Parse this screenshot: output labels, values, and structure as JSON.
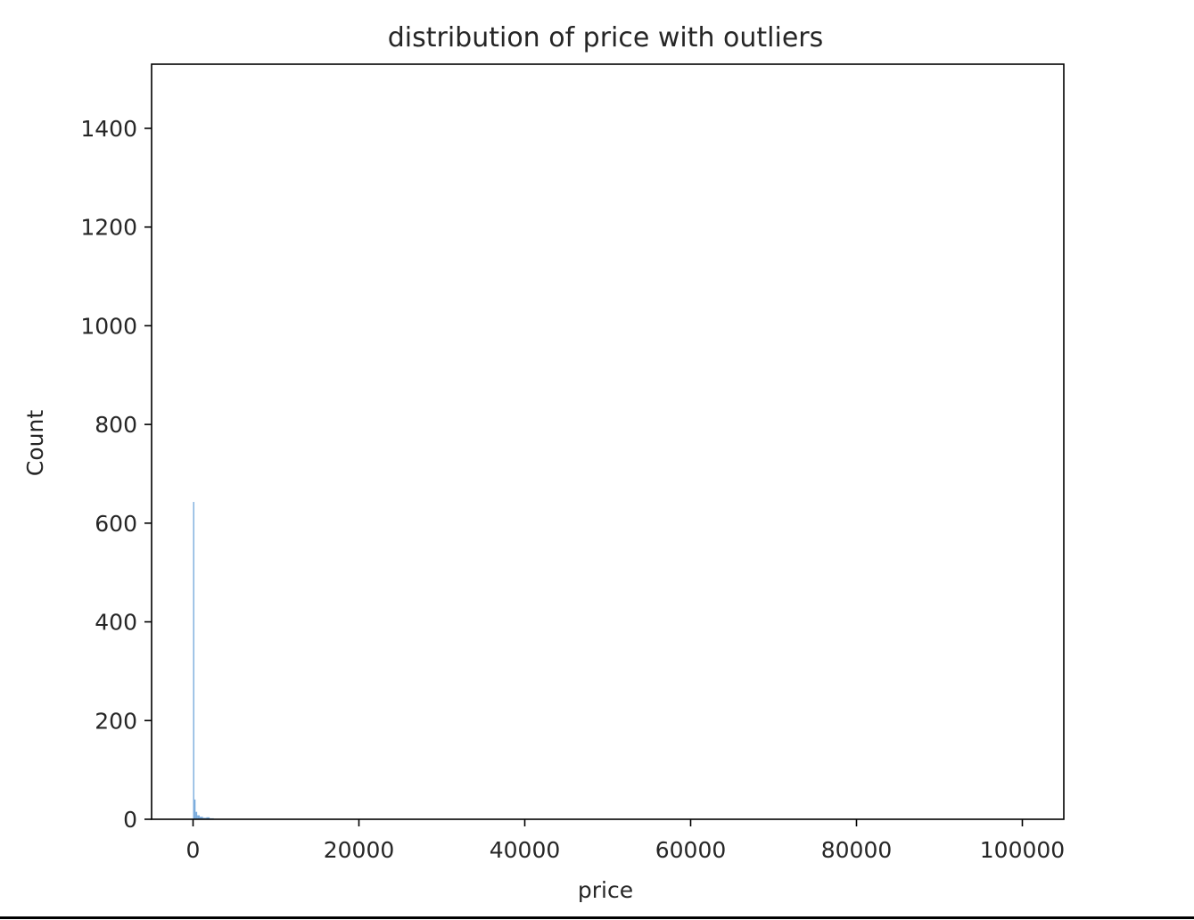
{
  "chart_data": {
    "type": "bar",
    "title": "distribution of price with outliers",
    "xlabel": "price",
    "ylabel": "Count",
    "xlim": [
      -5000,
      105000
    ],
    "ylim": [
      0,
      1530
    ],
    "xticks": [
      0,
      20000,
      40000,
      60000,
      80000,
      100000
    ],
    "xtick_labels": [
      "0",
      "20000",
      "40000",
      "60000",
      "80000",
      "100000"
    ],
    "yticks": [
      0,
      200,
      400,
      600,
      800,
      1000,
      1200,
      1400
    ],
    "ytick_labels": [
      "0",
      "200",
      "400",
      "600",
      "800",
      "1000",
      "1200",
      "1400"
    ],
    "grid": false,
    "bar_color": "#4c8fd1",
    "bins": [
      {
        "x0": 0,
        "x1": 150,
        "count": 643
      },
      {
        "x0": 150,
        "x1": 300,
        "count": 40
      },
      {
        "x0": 300,
        "x1": 500,
        "count": 15
      },
      {
        "x0": 500,
        "x1": 800,
        "count": 8
      },
      {
        "x0": 800,
        "x1": 1200,
        "count": 5
      },
      {
        "x0": 1200,
        "x1": 1600,
        "count": 3
      },
      {
        "x0": 1600,
        "x1": 2000,
        "count": 4
      },
      {
        "x0": 2000,
        "x1": 2500,
        "count": 2
      }
    ]
  }
}
